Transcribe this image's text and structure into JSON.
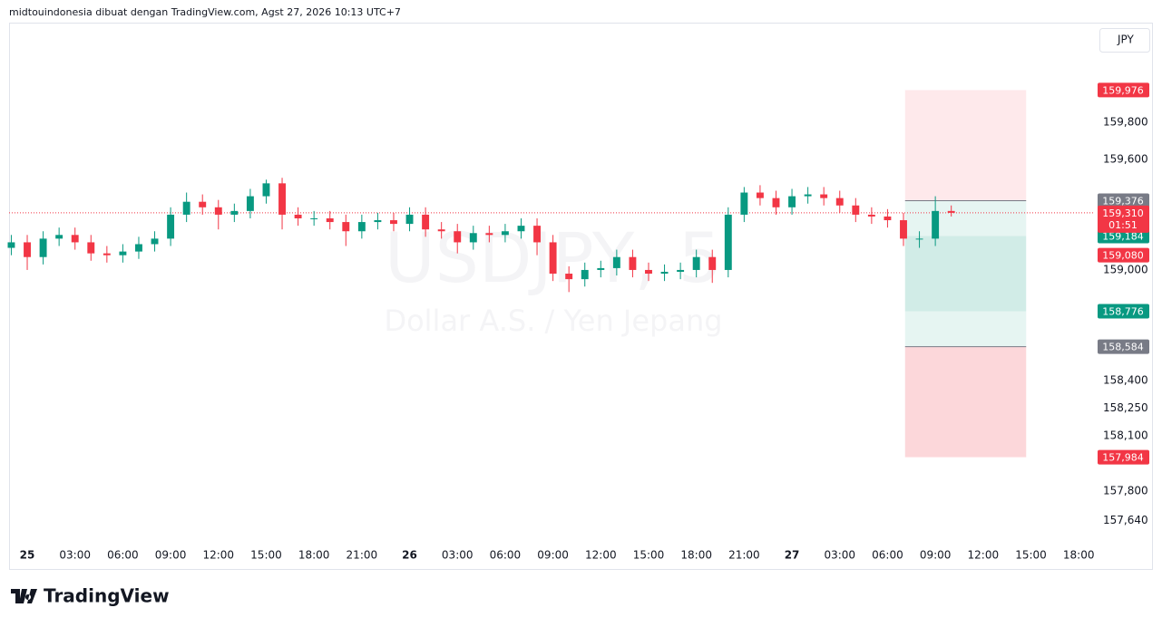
{
  "header": {
    "text": "midtouindonesia dibuat dengan TradingView.com, Agst 27, 2026 10:13 UTC+7",
    "currency": "JPY",
    "brand": "TradingView"
  },
  "chart_data": {
    "type": "candlestick",
    "title": "USDJPY, 5",
    "subtitle": "Dollar A.S. / Yen Jepang",
    "x": [
      -1,
      0,
      1,
      2,
      3,
      4,
      5,
      6,
      7,
      8,
      9,
      10,
      11,
      12,
      13,
      14,
      15,
      16,
      17,
      18,
      19,
      20,
      21,
      22,
      23,
      24,
      25,
      26,
      27,
      28,
      29,
      30,
      31,
      32,
      33,
      34,
      35,
      36,
      37,
      38,
      39,
      40,
      41,
      42,
      43,
      44,
      45,
      46,
      47,
      48,
      49,
      50,
      51,
      52,
      53,
      54,
      55,
      56,
      57,
      58
    ],
    "open": [
      159.12,
      159.15,
      159.07,
      159.17,
      159.19,
      159.15,
      159.09,
      159.08,
      159.1,
      159.14,
      159.17,
      159.3,
      159.37,
      159.34,
      159.3,
      159.32,
      159.4,
      159.47,
      159.3,
      159.28,
      159.28,
      159.26,
      159.21,
      159.26,
      159.27,
      159.25,
      159.3,
      159.22,
      159.21,
      159.15,
      159.2,
      159.19,
      159.21,
      159.24,
      159.15,
      158.98,
      158.95,
      159.0,
      159.01,
      159.07,
      159.0,
      158.98,
      158.99,
      159.0,
      159.07,
      159.0,
      159.3,
      159.42,
      159.39,
      159.34,
      159.4,
      159.41,
      159.39,
      159.35,
      159.3,
      159.29,
      159.27,
      159.17,
      159.17,
      159.32
    ],
    "high": [
      159.19,
      159.19,
      159.21,
      159.23,
      159.23,
      159.19,
      159.13,
      159.14,
      159.18,
      159.21,
      159.34,
      159.42,
      159.41,
      159.38,
      159.36,
      159.44,
      159.49,
      159.5,
      159.34,
      159.32,
      159.32,
      159.3,
      159.3,
      159.31,
      159.31,
      159.34,
      159.34,
      159.26,
      159.25,
      159.24,
      159.24,
      159.25,
      159.28,
      159.28,
      159.19,
      159.02,
      159.04,
      159.05,
      159.11,
      159.11,
      159.04,
      159.03,
      159.04,
      159.11,
      159.11,
      159.34,
      159.45,
      159.46,
      159.43,
      159.44,
      159.45,
      159.45,
      159.43,
      159.39,
      159.34,
      159.33,
      159.31,
      159.21,
      159.4,
      159.35
    ],
    "low": [
      159.08,
      159.0,
      159.03,
      159.13,
      159.11,
      159.05,
      159.04,
      159.04,
      159.06,
      159.1,
      159.13,
      159.26,
      159.3,
      159.22,
      159.26,
      159.28,
      159.36,
      159.22,
      159.24,
      159.24,
      159.22,
      159.13,
      159.17,
      159.22,
      159.21,
      159.21,
      159.18,
      159.17,
      159.09,
      159.11,
      159.15,
      159.15,
      159.17,
      159.08,
      158.94,
      158.88,
      158.91,
      158.96,
      158.97,
      158.96,
      158.94,
      158.94,
      158.95,
      158.96,
      158.93,
      158.96,
      159.26,
      159.35,
      159.3,
      159.3,
      159.36,
      159.35,
      159.31,
      159.26,
      159.25,
      159.23,
      159.13,
      159.12,
      159.13,
      159.29
    ],
    "close": [
      159.15,
      159.07,
      159.17,
      159.19,
      159.15,
      159.09,
      159.08,
      159.1,
      159.14,
      159.17,
      159.3,
      159.37,
      159.34,
      159.3,
      159.32,
      159.4,
      159.47,
      159.3,
      159.28,
      159.28,
      159.26,
      159.21,
      159.26,
      159.27,
      159.25,
      159.3,
      159.22,
      159.21,
      159.15,
      159.2,
      159.19,
      159.21,
      159.24,
      159.15,
      158.98,
      158.95,
      159.0,
      159.01,
      159.07,
      159.0,
      158.98,
      158.99,
      159.0,
      159.07,
      159.0,
      159.3,
      159.42,
      159.39,
      159.34,
      159.4,
      159.41,
      159.39,
      159.35,
      159.3,
      159.29,
      159.27,
      159.17,
      159.17,
      159.32,
      159.31
    ],
    "up_color": "#089981",
    "down_color": "#f23645",
    "xlim": [
      -1.14,
      66.9
    ],
    "xticks": [
      {
        "value": 0,
        "label": "25"
      },
      {
        "value": 3,
        "label": "03:00"
      },
      {
        "value": 6,
        "label": "06:00"
      },
      {
        "value": 9,
        "label": "09:00"
      },
      {
        "value": 12,
        "label": "12:00"
      },
      {
        "value": 15,
        "label": "15:00"
      },
      {
        "value": 18,
        "label": "18:00"
      },
      {
        "value": 21,
        "label": "21:00"
      },
      {
        "value": 24,
        "label": "26"
      },
      {
        "value": 27,
        "label": "03:00"
      },
      {
        "value": 30,
        "label": "06:00"
      },
      {
        "value": 33,
        "label": "09:00"
      },
      {
        "value": 36,
        "label": "12:00"
      },
      {
        "value": 39,
        "label": "15:00"
      },
      {
        "value": 42,
        "label": "18:00"
      },
      {
        "value": 45,
        "label": "21:00"
      },
      {
        "value": 48,
        "label": "27"
      },
      {
        "value": 51,
        "label": "03:00"
      },
      {
        "value": 54,
        "label": "06:00"
      },
      {
        "value": 57,
        "label": "09:00"
      },
      {
        "value": 60,
        "label": "12:00"
      },
      {
        "value": 63,
        "label": "15:00"
      },
      {
        "value": 66,
        "label": "18:00"
      }
    ],
    "ylim": [
      157.515,
      160.337
    ],
    "yticks": [
      {
        "value": 159.8,
        "label": "159,800"
      },
      {
        "value": 159.6,
        "label": "159,600"
      },
      {
        "value": 159.0,
        "label": "159,000"
      },
      {
        "value": 158.4,
        "label": "158,400"
      },
      {
        "value": 158.25,
        "label": "158,250"
      },
      {
        "value": 158.1,
        "label": "158,100"
      },
      {
        "value": 157.8,
        "label": "157,800"
      },
      {
        "value": 157.64,
        "label": "157,640"
      }
    ],
    "position_tool": {
      "x": [
        55.1,
        62.7
      ],
      "levels": [
        159.976,
        159.376,
        159.184,
        158.776,
        158.584,
        157.984
      ],
      "zone_colors": [
        "rgba(242,54,69,0.11)",
        "rgba(8,153,129,0.1)",
        "rgba(8,153,129,0.19)",
        "rgba(8,153,129,0.1)",
        "rgba(242,54,69,0.2)"
      ]
    },
    "price_labels": [
      {
        "value": 159.976,
        "label": "159,976",
        "color": "#f23645"
      },
      {
        "value": 159.376,
        "label": "159,376",
        "color": "#787b86"
      },
      {
        "value": 159.184,
        "label": "159,184",
        "color": "#089981"
      },
      {
        "value": 159.08,
        "label": "159,080",
        "color": "#f23645"
      },
      {
        "value": 158.776,
        "label": "158,776",
        "color": "#089981"
      },
      {
        "value": 158.584,
        "label": "158,584",
        "color": "#787b86"
      },
      {
        "value": 157.984,
        "label": "157,984",
        "color": "#f23645"
      }
    ],
    "last_price": {
      "value": 159.31,
      "label": "159,310",
      "countdown": "01:51",
      "color": "#f23645"
    }
  }
}
